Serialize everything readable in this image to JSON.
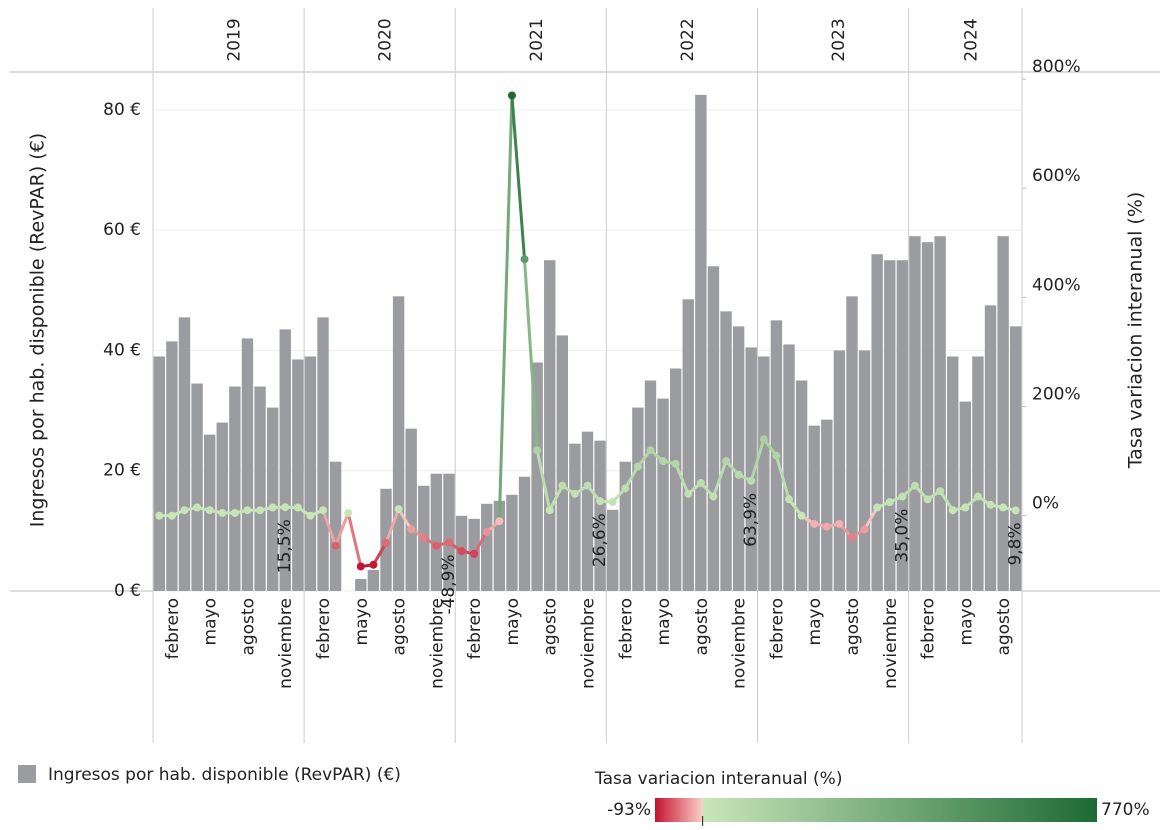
{
  "chart_data": {
    "type": "bar-line",
    "y_label": "Ingresos por hab. disponible (RevPAR) (€)",
    "y2_label": "Tasa variacion interanual (%)",
    "years": [
      "2019",
      "2020",
      "2021",
      "2022",
      "2023",
      "2024"
    ],
    "categories": [
      null,
      "febrero",
      null,
      null,
      "mayo",
      null,
      null,
      "agosto",
      null,
      null,
      "noviembre",
      null,
      null,
      "febrero",
      null,
      null,
      "mayo",
      null,
      null,
      "agosto",
      null,
      null,
      "noviembre",
      null,
      null,
      "febrero",
      null,
      null,
      "mayo",
      null,
      null,
      "agosto",
      null,
      null,
      "noviembre",
      null,
      null,
      "febrero",
      null,
      null,
      "mayo",
      null,
      null,
      "agosto",
      null,
      null,
      "noviembre",
      null,
      null,
      "febrero",
      null,
      null,
      "mayo",
      null,
      null,
      "agosto",
      null,
      null,
      "noviembre",
      null,
      null,
      "febrero",
      null,
      null,
      "mayo",
      null,
      null,
      "agosto",
      null
    ],
    "series": [
      {
        "name": "Ingresos por hab. disponible (RevPAR) (€)",
        "type": "bar",
        "color": "#9a9ca0",
        "values": [
          39,
          41.5,
          45.5,
          34.5,
          26,
          28,
          34,
          42,
          34,
          30.5,
          43.5,
          38.5,
          39,
          45.5,
          21.5,
          null,
          2,
          3.5,
          17,
          49,
          27,
          17.5,
          19.5,
          19.5,
          12.5,
          12,
          14.5,
          15,
          16,
          19,
          38,
          55,
          42.5,
          24.5,
          26.5,
          25,
          13.5,
          21.5,
          30.5,
          35,
          32,
          37,
          48.5,
          82.5,
          54,
          46.5,
          44,
          40.5,
          39,
          45,
          41,
          35,
          27.5,
          28.5,
          40,
          49,
          40,
          56,
          55,
          55,
          59,
          58,
          59,
          39,
          31.5,
          39,
          47.5,
          59,
          44
        ]
      },
      {
        "name": "Tasa variacion interanual (%)",
        "type": "line",
        "axis": "y2",
        "values": [
          0,
          0,
          10,
          15,
          10,
          5,
          5,
          10,
          10,
          15,
          15.5,
          15,
          0,
          10,
          -55,
          5,
          -93,
          -90,
          -50,
          12,
          -25,
          -40,
          -55,
          -48.9,
          -65,
          -70,
          -30,
          -10,
          770,
          470,
          120,
          10,
          55,
          40,
          55,
          26.6,
          25,
          50,
          90,
          120,
          100,
          95,
          40,
          60,
          35,
          100,
          75,
          63.9,
          140,
          110,
          30,
          0,
          -15,
          -20,
          -15,
          -40,
          -25,
          15,
          25,
          35.0,
          55,
          30,
          45,
          10,
          15,
          35,
          20,
          15,
          9.8
        ],
        "value_labels": [
          null,
          null,
          null,
          null,
          null,
          null,
          null,
          null,
          null,
          null,
          "15,5%",
          null,
          null,
          null,
          null,
          null,
          null,
          null,
          null,
          null,
          null,
          null,
          null,
          "-48,9%",
          null,
          null,
          null,
          null,
          null,
          null,
          null,
          null,
          null,
          null,
          null,
          "26,6%",
          null,
          null,
          null,
          null,
          null,
          null,
          null,
          null,
          null,
          null,
          null,
          "63,9%",
          null,
          null,
          null,
          null,
          null,
          null,
          null,
          null,
          null,
          null,
          null,
          "35,0%",
          null,
          null,
          null,
          null,
          null,
          null,
          null,
          null,
          "9,8%"
        ]
      }
    ],
    "ylim": [
      0,
      86.3
    ],
    "yticks": [
      {
        "value": 0,
        "label": "0 €"
      },
      {
        "value": 20,
        "label": "20 €"
      },
      {
        "value": 40,
        "label": "40 €"
      },
      {
        "value": 60,
        "label": "60 €"
      },
      {
        "value": 80,
        "label": "80 €"
      }
    ],
    "y2lim": [
      -138,
      813
    ],
    "y2ticks": [
      {
        "value": 0,
        "label": "0%"
      },
      {
        "value": 200,
        "label": "200%"
      },
      {
        "value": 400,
        "label": "400%"
      },
      {
        "value": 600,
        "label": "600%"
      },
      {
        "value": 800,
        "label": "800%"
      }
    ],
    "grid": true,
    "color_scale": {
      "title": "Tasa variacion interanual (%)",
      "min": -93,
      "max": 770,
      "min_label": "-93%",
      "max_label": "770%",
      "negative_colors": [
        "#c4122f",
        "#fbd0c8"
      ],
      "positive_colors": [
        "#c9e6b9",
        "#1d6a35"
      ]
    }
  }
}
